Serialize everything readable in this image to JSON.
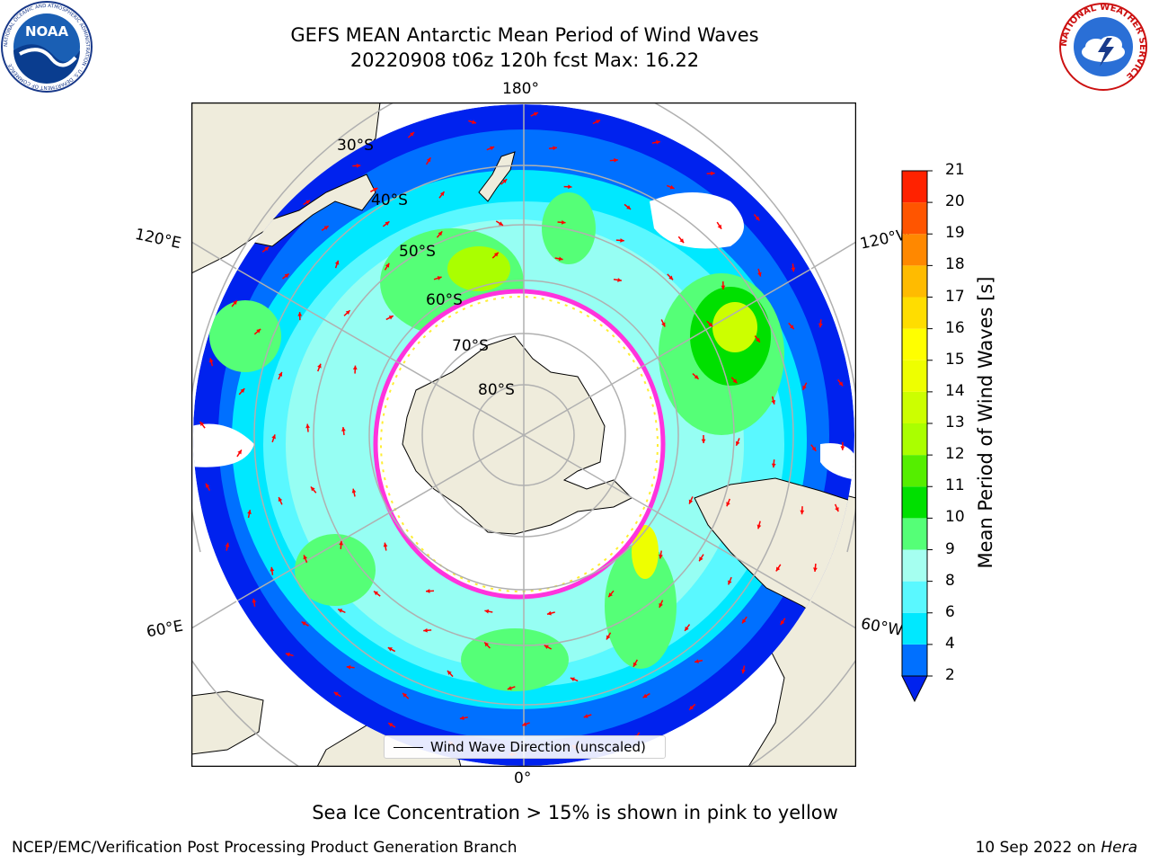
{
  "title": {
    "line1": "GEFS MEAN Antarctic Mean Period of Wind Waves",
    "line2": "20220908 t06z 120h fcst   Max: 16.22"
  },
  "logos": {
    "left": {
      "text": "NOAA",
      "ring_text": "NATIONAL OCEANIC AND ATMOSPHERIC ADMINISTRATION · U.S. DEPARTMENT OF COMMERCE"
    },
    "right": {
      "ring_text": "NATIONAL WEATHER SERVICE"
    }
  },
  "map": {
    "projection": "south-polar-stereographic",
    "longitude_labels": {
      "top": "180°",
      "bottom": "0°",
      "upper_left": "120°E",
      "upper_right": "120°W",
      "lower_left": "60°E",
      "lower_right": "60°W"
    },
    "latitude_labels": [
      "30°S",
      "40°S",
      "50°S",
      "60°S",
      "70°S",
      "80°S"
    ],
    "legend": "Wind Wave Direction (unscaled)",
    "colors": {
      "land": "#efecdc",
      "ice_edge_pink": "#ff33dd",
      "ice_edge_yellow": "#ffee33",
      "arrow": "#ff0000",
      "grid": "#b0b0b0"
    }
  },
  "colorbar": {
    "label": "Mean Period of Wind Waves [s]",
    "ticks": [
      "2",
      "4",
      "6",
      "8",
      "9",
      "10",
      "11",
      "12",
      "13",
      "14",
      "15",
      "16",
      "17",
      "18",
      "19",
      "20",
      "21"
    ],
    "colors": [
      "#0070ff",
      "#00e8ff",
      "#5af8ff",
      "#a5fff0",
      "#55ff77",
      "#00e000",
      "#55ee00",
      "#aaff00",
      "#ccff00",
      "#eeff00",
      "#ffff00",
      "#ffdd00",
      "#ffbb00",
      "#ff8800",
      "#ff5500",
      "#ff2200"
    ],
    "under_color": "#0022ee"
  },
  "ice_note": "Sea Ice Concentration > 15% is shown in pink to yellow",
  "footer": {
    "left": "NCEP/EMC/Verification Post Processing Product Generation Branch",
    "right_date": "10 Sep 2022 on ",
    "right_machine": "Hera"
  }
}
